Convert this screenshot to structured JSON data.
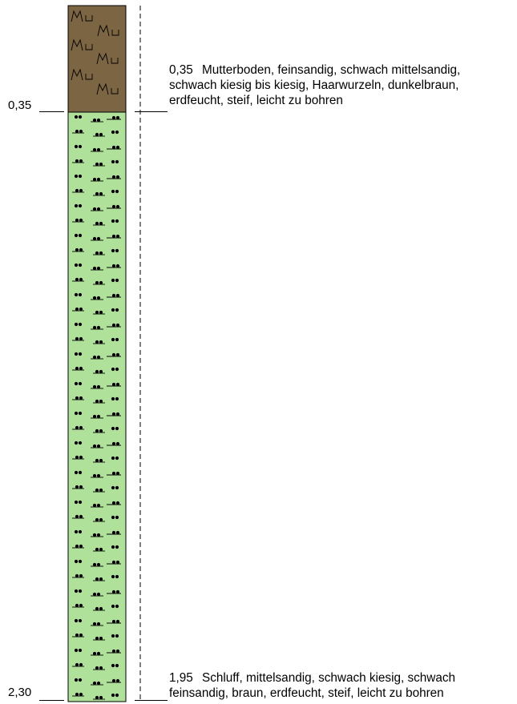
{
  "layers": [
    {
      "id": "mutterboden",
      "depth_label": "0,35",
      "thickness_label": "0,35",
      "description_lines": [
        "Mutterboden, feinsandig, schwach mittelsandig,",
        "schwach kiesig bis kiesig, Haarwurzeln, dunkelbraun,",
        "erdfeucht, steif, leicht zu bohren"
      ],
      "fill_color": "#7b6543",
      "symbol_text": "Mu"
    },
    {
      "id": "schluff",
      "depth_label": "2,30",
      "thickness_label": "1,95",
      "description_lines": [
        "Schluff, mittelsandig, schwach kiesig, schwach",
        "feinsandig, braun, erdfeucht, steif, leicht zu bohren"
      ],
      "fill_color": "#b0e19a",
      "symbol_text": ""
    }
  ]
}
